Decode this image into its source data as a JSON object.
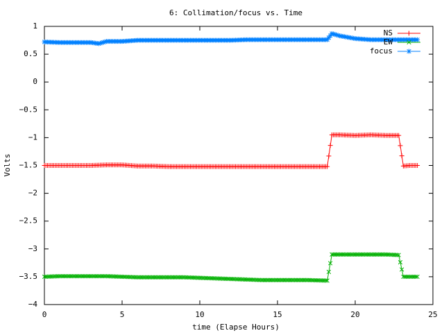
{
  "chart_data": {
    "type": "line",
    "title": "6: Collimation/focus vs. Time",
    "xlabel": "time (Elapse Hours)",
    "ylabel": "Volts",
    "xlim": [
      0,
      25
    ],
    "ylim": [
      -4,
      1
    ],
    "x_ticks": [
      0,
      5,
      10,
      15,
      20,
      25
    ],
    "y_ticks": [
      -4,
      -3.5,
      -3,
      -2.5,
      -2,
      -1.5,
      -1,
      -0.5,
      0,
      0.5,
      1
    ],
    "x_tick_labels": [
      "0",
      "5",
      "10",
      "15",
      "20",
      "25"
    ],
    "y_tick_labels": [
      "−4",
      "−3.5",
      "−3",
      "−2.5",
      "−2",
      "−1.5",
      "−1",
      "−0.5",
      "0",
      "0.5",
      "1"
    ],
    "grid": false,
    "legend_position": "top-right",
    "series": [
      {
        "name": "NS",
        "color": "#ff0000",
        "marker": "plus",
        "x": [
          0,
          1,
          2,
          3,
          4,
          5,
          6,
          7,
          8,
          9,
          10,
          11,
          12,
          13,
          14,
          15,
          16,
          17,
          18.2,
          18.5,
          19,
          20,
          21,
          22,
          22.8,
          23.1,
          23.5,
          24
        ],
        "values": [
          -1.5,
          -1.5,
          -1.5,
          -1.5,
          -1.49,
          -1.49,
          -1.51,
          -1.51,
          -1.52,
          -1.52,
          -1.52,
          -1.52,
          -1.52,
          -1.52,
          -1.52,
          -1.52,
          -1.52,
          -1.52,
          -1.52,
          -0.95,
          -0.95,
          -0.96,
          -0.95,
          -0.96,
          -0.96,
          -1.51,
          -1.5,
          -1.5
        ]
      },
      {
        "name": "EW",
        "color": "#00b000",
        "marker": "cross",
        "x": [
          0,
          1,
          2,
          3,
          4,
          5,
          6,
          7,
          8,
          9,
          10,
          11,
          12,
          13,
          14,
          15,
          16,
          17,
          18.2,
          18.5,
          19,
          20,
          21,
          22,
          22.8,
          23.1,
          23.5,
          24
        ],
        "values": [
          -3.5,
          -3.49,
          -3.49,
          -3.49,
          -3.49,
          -3.5,
          -3.51,
          -3.51,
          -3.51,
          -3.51,
          -3.52,
          -3.53,
          -3.54,
          -3.55,
          -3.56,
          -3.56,
          -3.56,
          -3.56,
          -3.57,
          -3.1,
          -3.1,
          -3.1,
          -3.1,
          -3.1,
          -3.11,
          -3.5,
          -3.5,
          -3.5
        ]
      },
      {
        "name": "focus",
        "color": "#0080ff",
        "marker": "star",
        "x": [
          0,
          1,
          2,
          3,
          3.5,
          4,
          5,
          6,
          7,
          8,
          9,
          10,
          11,
          12,
          13,
          14,
          15,
          16,
          17,
          18.2,
          18.5,
          19,
          20,
          21,
          22,
          23,
          24
        ],
        "values": [
          0.72,
          0.71,
          0.71,
          0.71,
          0.69,
          0.73,
          0.73,
          0.75,
          0.75,
          0.75,
          0.75,
          0.75,
          0.75,
          0.75,
          0.76,
          0.76,
          0.76,
          0.76,
          0.76,
          0.76,
          0.87,
          0.83,
          0.78,
          0.76,
          0.76,
          0.76,
          0.76
        ]
      }
    ]
  }
}
